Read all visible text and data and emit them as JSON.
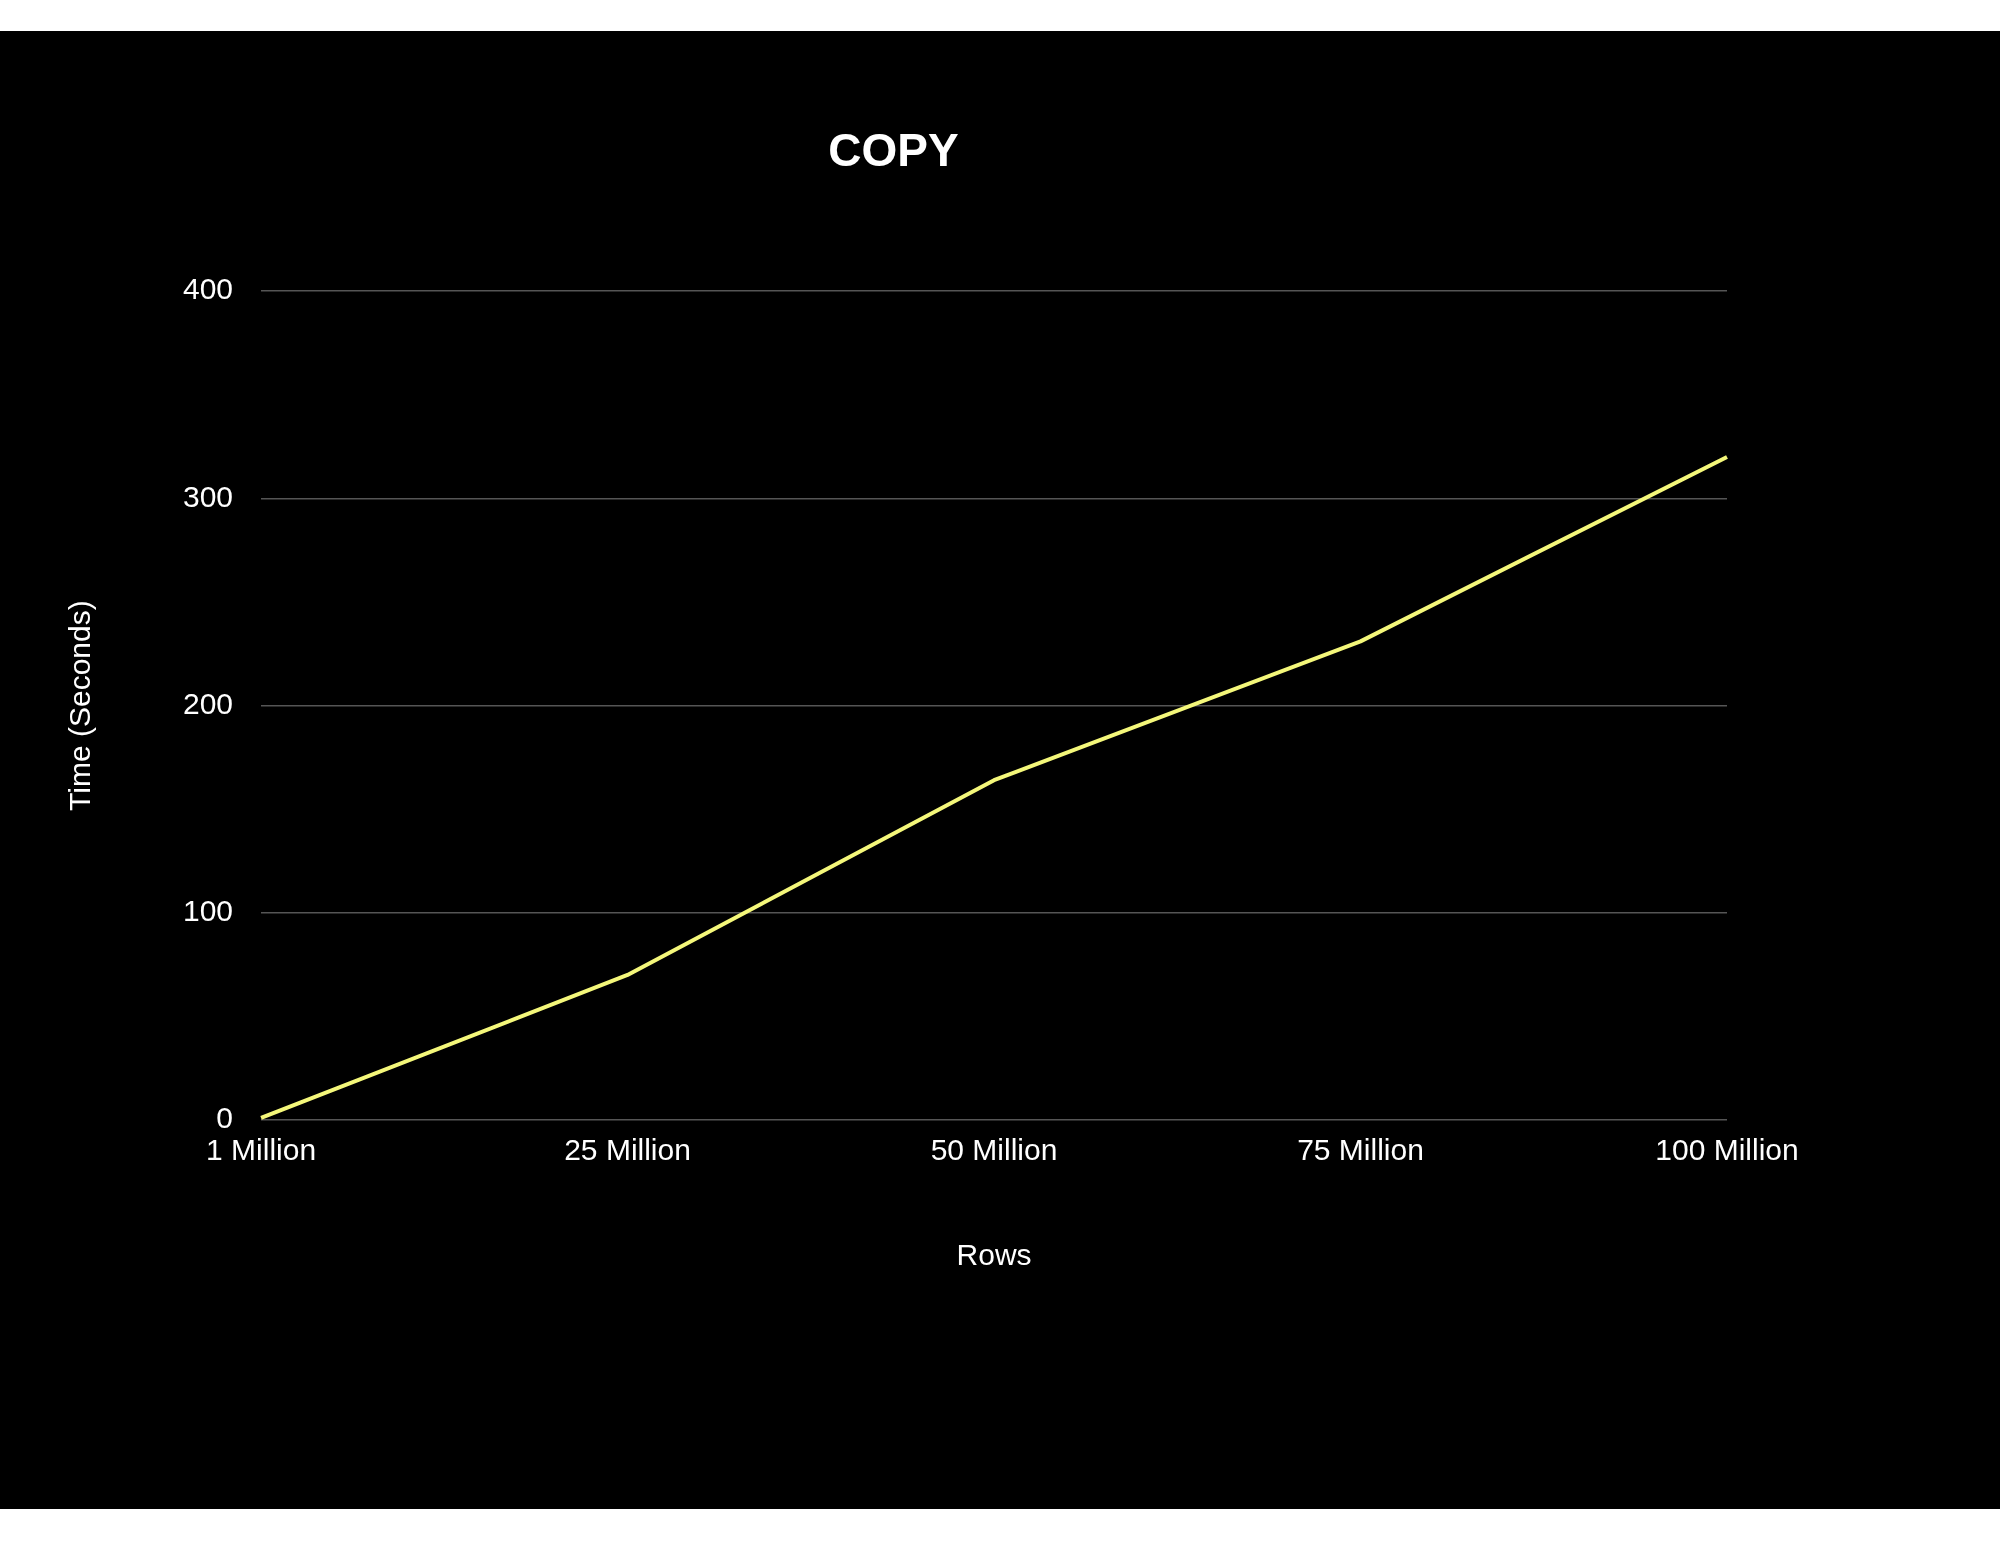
{
  "chart_data": {
    "type": "line",
    "title": "COPY",
    "xlabel": "Rows",
    "ylabel": "Time (Seconds)",
    "categories": [
      "1 Million",
      "25 Million",
      "50 Million",
      "75 Million",
      "100 Million"
    ],
    "series": [
      {
        "color": "#f4f77a",
        "values": [
          1,
          70,
          164,
          231,
          320
        ]
      }
    ],
    "ylim": [
      0,
      400
    ],
    "yticks": [
      0,
      100,
      200,
      300,
      400
    ],
    "grid": "y",
    "marker": "none"
  }
}
